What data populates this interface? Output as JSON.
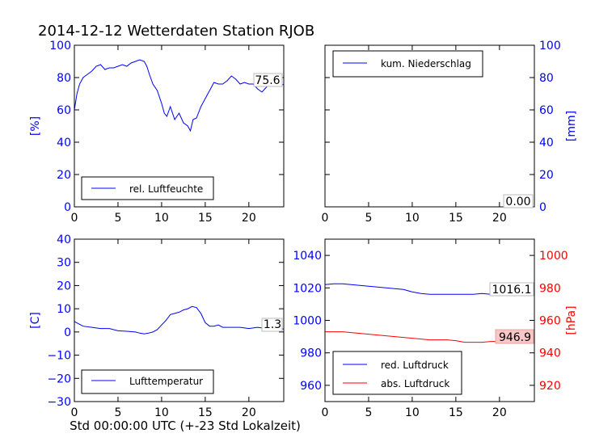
{
  "figure": {
    "title": "2014-12-12 Wetterdaten Station RJOB",
    "xlabel": "Std 00:00:00 UTC (+-23 Std Lokalzeit)"
  },
  "chart_data": [
    {
      "type": "line",
      "id": "humidity",
      "ylabel": "[%]",
      "ylabel_color": "#0000ff",
      "xlim": [
        0,
        24
      ],
      "ylim": [
        0,
        100
      ],
      "xticks": [
        0,
        5,
        10,
        15,
        20
      ],
      "yticks": [
        0,
        20,
        40,
        60,
        80,
        100
      ],
      "legend": {
        "label": "rel. Luftfeuchte",
        "placement": "lower-left"
      },
      "annotation": "75.6",
      "series": [
        {
          "name": "rel. Luftfeuchte",
          "color": "#0000ff",
          "x": [
            0,
            0.3,
            0.6,
            1,
            1.5,
            2,
            2.5,
            3,
            3.5,
            4,
            4.5,
            5,
            5.5,
            6,
            6.5,
            7,
            7.5,
            8,
            8.3,
            8.6,
            9,
            9.5,
            10,
            10.3,
            10.6,
            11,
            11.5,
            12,
            12.5,
            13,
            13.3,
            13.6,
            14,
            14.5,
            15,
            15.5,
            16,
            16.5,
            17,
            17.5,
            18,
            18.5,
            19,
            19.5,
            20,
            20.5,
            21,
            21.5,
            22,
            22.5,
            23,
            23.5,
            24
          ],
          "y": [
            60,
            70,
            76,
            80,
            82,
            84,
            87,
            88,
            85,
            86,
            86,
            87,
            88,
            87,
            89,
            90,
            91,
            90,
            87,
            82,
            76,
            72,
            64,
            58,
            56,
            62,
            54,
            58,
            52,
            50,
            47,
            54,
            55,
            62,
            67,
            72,
            77,
            76,
            76,
            78,
            81,
            79,
            76,
            77,
            76,
            76,
            73,
            71,
            74,
            77,
            76,
            75.6,
            75.6
          ]
        }
      ]
    },
    {
      "type": "line",
      "id": "precipitation",
      "ylabel": "[mm]",
      "ylabel_color": "#0000ff",
      "xlim": [
        0,
        24
      ],
      "ylim": [
        0,
        100
      ],
      "xticks": [
        0,
        5,
        10,
        15,
        20
      ],
      "yticks": [
        0,
        20,
        40,
        60,
        80,
        100
      ],
      "legend": {
        "label": "kum. Niederschlag",
        "placement": "upper-left"
      },
      "annotation": "0.00",
      "series": [
        {
          "name": "kum. Niederschlag",
          "color": "#0000ff",
          "x": [
            0,
            24
          ],
          "y": [
            0,
            0
          ]
        }
      ]
    },
    {
      "type": "line",
      "id": "temperature",
      "ylabel": "[C]",
      "ylabel_color": "#0000ff",
      "xlim": [
        0,
        24
      ],
      "ylim": [
        -30,
        40
      ],
      "xticks": [
        0,
        5,
        10,
        15,
        20
      ],
      "yticks": [
        -30,
        -20,
        -10,
        0,
        10,
        20,
        30,
        40
      ],
      "legend": {
        "label": "Lufttemperatur",
        "placement": "lower-left"
      },
      "annotation": "1.3",
      "series": [
        {
          "name": "Lufttemperatur",
          "color": "#0000ff",
          "x": [
            0,
            0.5,
            1,
            2,
            3,
            4,
            5,
            6,
            7,
            7.5,
            8,
            8.5,
            9,
            9.5,
            10,
            10.5,
            11,
            11.5,
            12,
            12.5,
            13,
            13.5,
            14,
            14.5,
            15,
            15.5,
            16,
            16.5,
            17,
            17.5,
            18,
            19,
            20,
            21,
            22,
            23,
            24
          ],
          "y": [
            4.5,
            3.5,
            2.5,
            2,
            1.5,
            1.5,
            0.5,
            0.3,
            0,
            -0.5,
            -0.8,
            -0.5,
            0,
            1,
            3,
            5,
            7.5,
            8,
            8.5,
            9.5,
            10,
            11,
            10.5,
            8,
            4,
            2.5,
            2.5,
            3,
            2,
            2,
            2,
            2,
            1.5,
            2,
            1.5,
            1.3,
            1.3
          ]
        }
      ]
    },
    {
      "type": "line",
      "id": "pressure",
      "ylabel": "[hPa]",
      "ylabel_color": "#ff0000",
      "xlim": [
        0,
        24
      ],
      "ylim": [
        950,
        1050
      ],
      "ylim_right": [
        910,
        1010
      ],
      "xticks": [
        0,
        5,
        10,
        15,
        20
      ],
      "yticks": [
        960,
        980,
        1000,
        1020,
        1040
      ],
      "yticks_right": [
        920,
        940,
        960,
        980,
        1000
      ],
      "legend": {
        "labels": [
          "red. Luftdruck",
          "abs. Luftdruck"
        ],
        "placement": "lower-left"
      },
      "annotations": [
        "1016.1",
        "946.9"
      ],
      "series": [
        {
          "name": "red. Luftdruck",
          "color": "#0000ff",
          "axis": "left",
          "x": [
            0,
            1,
            2,
            3,
            4,
            5,
            6,
            7,
            8,
            9,
            10,
            11,
            12,
            13,
            14,
            15,
            16,
            17,
            18,
            19,
            20,
            21,
            22,
            23,
            24
          ],
          "y": [
            1022,
            1022.5,
            1022.5,
            1022,
            1021.5,
            1021,
            1020.5,
            1020,
            1019.5,
            1019,
            1017.5,
            1016.5,
            1016,
            1016,
            1016,
            1016,
            1016,
            1016,
            1016.5,
            1016,
            1016,
            1016,
            1016,
            1016.1,
            1016.1
          ]
        },
        {
          "name": "abs. Luftdruck",
          "color": "#ff0000",
          "axis": "right",
          "x": [
            0,
            1,
            2,
            3,
            4,
            5,
            6,
            7,
            8,
            9,
            10,
            11,
            12,
            13,
            14,
            15,
            16,
            17,
            18,
            19,
            20,
            21,
            22,
            23,
            24
          ],
          "y": [
            953,
            953,
            953,
            952.5,
            952,
            951.5,
            951,
            950.5,
            950,
            949.5,
            949,
            948.5,
            948,
            948,
            948,
            947.5,
            946.5,
            946.5,
            946.5,
            947,
            947,
            947,
            947,
            946.9,
            946.9
          ]
        }
      ]
    }
  ]
}
